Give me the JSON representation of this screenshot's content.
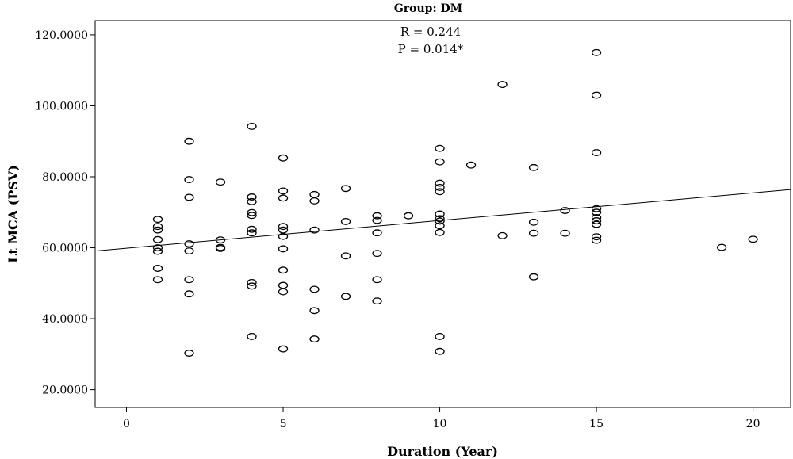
{
  "chart_data": {
    "type": "scatter",
    "title": "Group: DM",
    "xlabel": "Duration (Year)",
    "ylabel": "Lt MCA (PSV)",
    "xlim": [
      -1,
      21.2
    ],
    "ylim": [
      15,
      124
    ],
    "xticks": [
      0,
      5,
      10,
      15,
      20
    ],
    "xtick_labels": [
      "0",
      "5",
      "10",
      "15",
      "20"
    ],
    "yticks": [
      20,
      40,
      60,
      80,
      100,
      120
    ],
    "ytick_labels": [
      "20.0000",
      "40.0000",
      "60.0000",
      "80.0000",
      "100.0000",
      "120.0000"
    ],
    "annotations": [
      "R = 0.244",
      "P = 0.014*"
    ],
    "grid": false,
    "fit_line": {
      "x": [
        -1,
        21.2
      ],
      "y": [
        59.1,
        76.4
      ]
    },
    "points": [
      {
        "x": 1,
        "y": 68
      },
      {
        "x": 1,
        "y": 66
      },
      {
        "x": 1,
        "y": 65
      },
      {
        "x": 1,
        "y": 62.3
      },
      {
        "x": 1,
        "y": 60
      },
      {
        "x": 1,
        "y": 59
      },
      {
        "x": 1,
        "y": 54.2
      },
      {
        "x": 1,
        "y": 51
      },
      {
        "x": 2,
        "y": 90
      },
      {
        "x": 2,
        "y": 79.2
      },
      {
        "x": 2,
        "y": 74.2
      },
      {
        "x": 2,
        "y": 61.1
      },
      {
        "x": 2,
        "y": 59.1
      },
      {
        "x": 2,
        "y": 51
      },
      {
        "x": 2,
        "y": 47
      },
      {
        "x": 2,
        "y": 30.3
      },
      {
        "x": 3,
        "y": 78.5
      },
      {
        "x": 3,
        "y": 62.2
      },
      {
        "x": 3,
        "y": 60.1
      },
      {
        "x": 3,
        "y": 59.8
      },
      {
        "x": 4,
        "y": 94.2
      },
      {
        "x": 4,
        "y": 74.3
      },
      {
        "x": 4,
        "y": 73
      },
      {
        "x": 4,
        "y": 69.9
      },
      {
        "x": 4,
        "y": 69.1
      },
      {
        "x": 4,
        "y": 65.2
      },
      {
        "x": 4,
        "y": 64.2
      },
      {
        "x": 4,
        "y": 50.2
      },
      {
        "x": 4,
        "y": 49.2
      },
      {
        "x": 4,
        "y": 35
      },
      {
        "x": 5,
        "y": 85.3
      },
      {
        "x": 5,
        "y": 76
      },
      {
        "x": 5,
        "y": 74
      },
      {
        "x": 5,
        "y": 66
      },
      {
        "x": 5,
        "y": 65
      },
      {
        "x": 5,
        "y": 63.2
      },
      {
        "x": 5,
        "y": 59.7
      },
      {
        "x": 5,
        "y": 53.7
      },
      {
        "x": 5,
        "y": 49.4
      },
      {
        "x": 5,
        "y": 47.6
      },
      {
        "x": 5,
        "y": 31.5
      },
      {
        "x": 6,
        "y": 75
      },
      {
        "x": 6,
        "y": 73.2
      },
      {
        "x": 6,
        "y": 65
      },
      {
        "x": 6,
        "y": 48.3
      },
      {
        "x": 6,
        "y": 42.3
      },
      {
        "x": 6,
        "y": 34.3
      },
      {
        "x": 7,
        "y": 76.7
      },
      {
        "x": 7,
        "y": 67.4
      },
      {
        "x": 7,
        "y": 57.7
      },
      {
        "x": 7,
        "y": 46.3
      },
      {
        "x": 8,
        "y": 69
      },
      {
        "x": 8,
        "y": 67.7
      },
      {
        "x": 8,
        "y": 64.2
      },
      {
        "x": 8,
        "y": 58.4
      },
      {
        "x": 8,
        "y": 51
      },
      {
        "x": 8,
        "y": 45
      },
      {
        "x": 9,
        "y": 69
      },
      {
        "x": 10,
        "y": 88
      },
      {
        "x": 10,
        "y": 84.2
      },
      {
        "x": 10,
        "y": 78.2
      },
      {
        "x": 10,
        "y": 77
      },
      {
        "x": 10,
        "y": 75.8
      },
      {
        "x": 10,
        "y": 69.5
      },
      {
        "x": 10,
        "y": 68.2
      },
      {
        "x": 10,
        "y": 67.5
      },
      {
        "x": 10,
        "y": 66.2
      },
      {
        "x": 10,
        "y": 64.3
      },
      {
        "x": 10,
        "y": 35
      },
      {
        "x": 10,
        "y": 30.8
      },
      {
        "x": 11,
        "y": 83.3
      },
      {
        "x": 12,
        "y": 106
      },
      {
        "x": 12,
        "y": 63.4
      },
      {
        "x": 13,
        "y": 82.6
      },
      {
        "x": 13,
        "y": 67.2
      },
      {
        "x": 13,
        "y": 64.1
      },
      {
        "x": 13,
        "y": 51.8
      },
      {
        "x": 14,
        "y": 70.5
      },
      {
        "x": 14,
        "y": 64.1
      },
      {
        "x": 15,
        "y": 115
      },
      {
        "x": 15,
        "y": 103
      },
      {
        "x": 15,
        "y": 86.8
      },
      {
        "x": 15,
        "y": 71
      },
      {
        "x": 15,
        "y": 70
      },
      {
        "x": 15,
        "y": 68.5
      },
      {
        "x": 15,
        "y": 67.6
      },
      {
        "x": 15,
        "y": 66.6
      },
      {
        "x": 15,
        "y": 63.1
      },
      {
        "x": 15,
        "y": 62.1
      },
      {
        "x": 19,
        "y": 60.1
      },
      {
        "x": 20,
        "y": 62.4
      }
    ]
  }
}
